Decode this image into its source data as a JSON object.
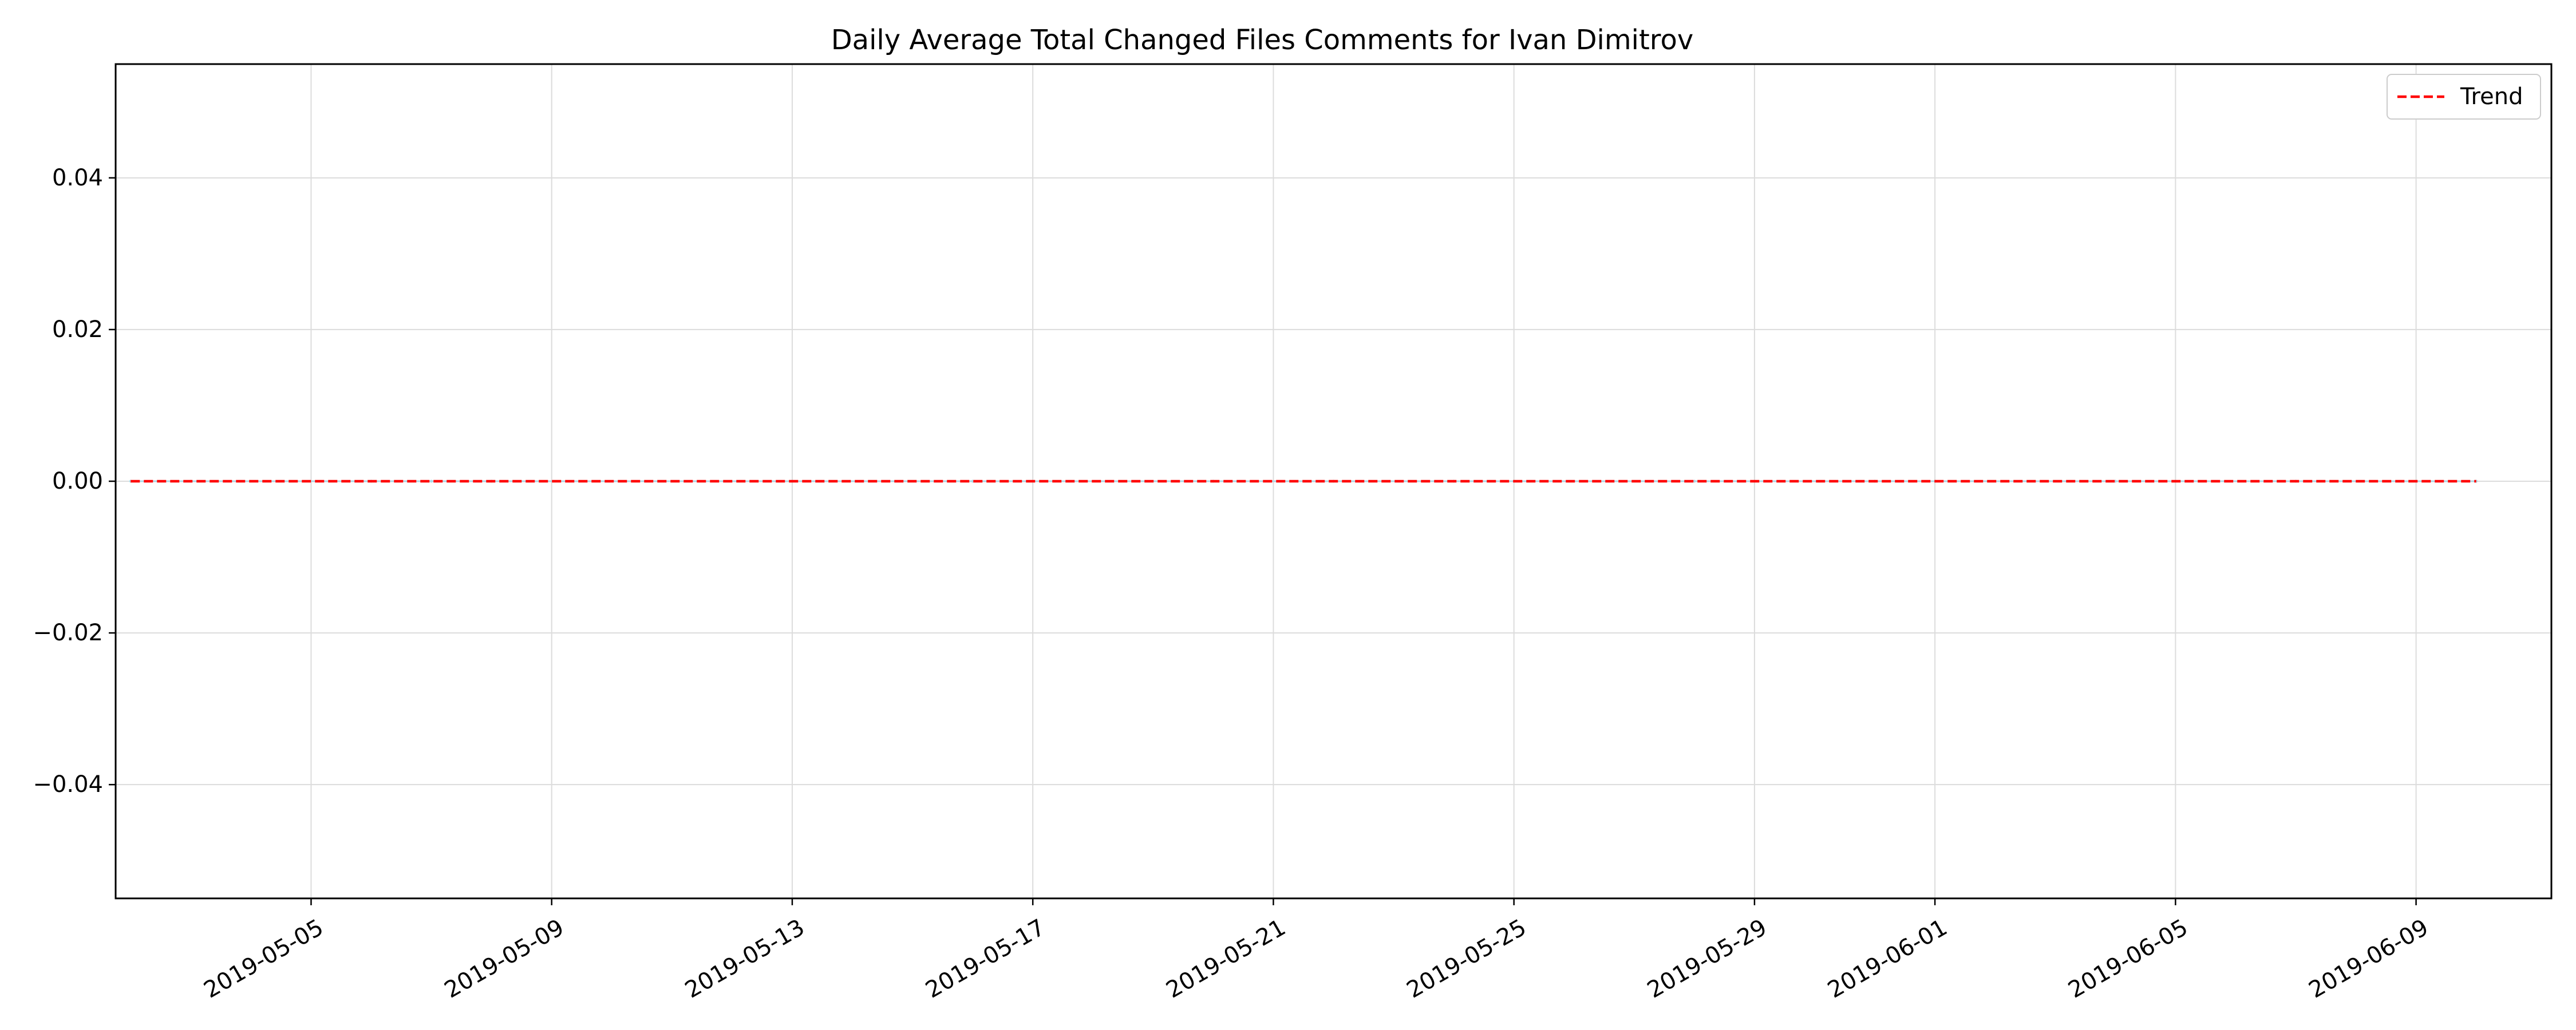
{
  "chart_data": {
    "type": "line",
    "title": "Daily Average Total Changed Files Comments for Ivan Dimitrov",
    "xlabel": "",
    "ylabel": "",
    "x_axis_type": "date",
    "x_range": [
      "2019-05-01T18:00",
      "2019-06-11T06:00"
    ],
    "ylim": [
      -0.055,
      0.055
    ],
    "grid": true,
    "legend_position": "top-right",
    "x_ticks": [
      "2019-05-05",
      "2019-05-09",
      "2019-05-13",
      "2019-05-17",
      "2019-05-21",
      "2019-05-25",
      "2019-05-29",
      "2019-06-01",
      "2019-06-05",
      "2019-06-09"
    ],
    "y_ticks": [
      -0.04,
      -0.02,
      0.0,
      0.02,
      0.04
    ],
    "y_tick_labels": [
      "−0.04",
      "−0.02",
      "0.00",
      "0.02",
      "0.04"
    ],
    "series": [
      {
        "name": "",
        "style": "solid",
        "color": "#add8e6",
        "points": [
          {
            "x": "2019-05-02",
            "y": 0
          },
          {
            "x": "2019-05-03",
            "y": 0
          },
          {
            "x": "2019-05-06",
            "y": 0
          },
          {
            "x": "2019-05-07",
            "y": 0
          },
          {
            "x": "2019-05-08",
            "y": 0
          },
          {
            "x": "2019-05-13",
            "y": 0
          },
          {
            "x": "2019-05-16",
            "y": 0
          },
          {
            "x": "2019-05-20",
            "y": 0
          },
          {
            "x": "2019-05-22",
            "y": 0
          },
          {
            "x": "2019-05-24",
            "y": 0
          },
          {
            "x": "2019-05-28",
            "y": 0
          },
          {
            "x": "2019-05-31",
            "y": 0
          },
          {
            "x": "2019-06-04",
            "y": 0
          },
          {
            "x": "2019-06-07",
            "y": 0
          },
          {
            "x": "2019-06-10",
            "y": 0
          }
        ]
      },
      {
        "name": "Trend",
        "style": "dashed",
        "color": "#ff0000",
        "points": [
          {
            "x": "2019-05-02",
            "y": 0
          },
          {
            "x": "2019-06-10",
            "y": 0
          }
        ]
      }
    ]
  }
}
